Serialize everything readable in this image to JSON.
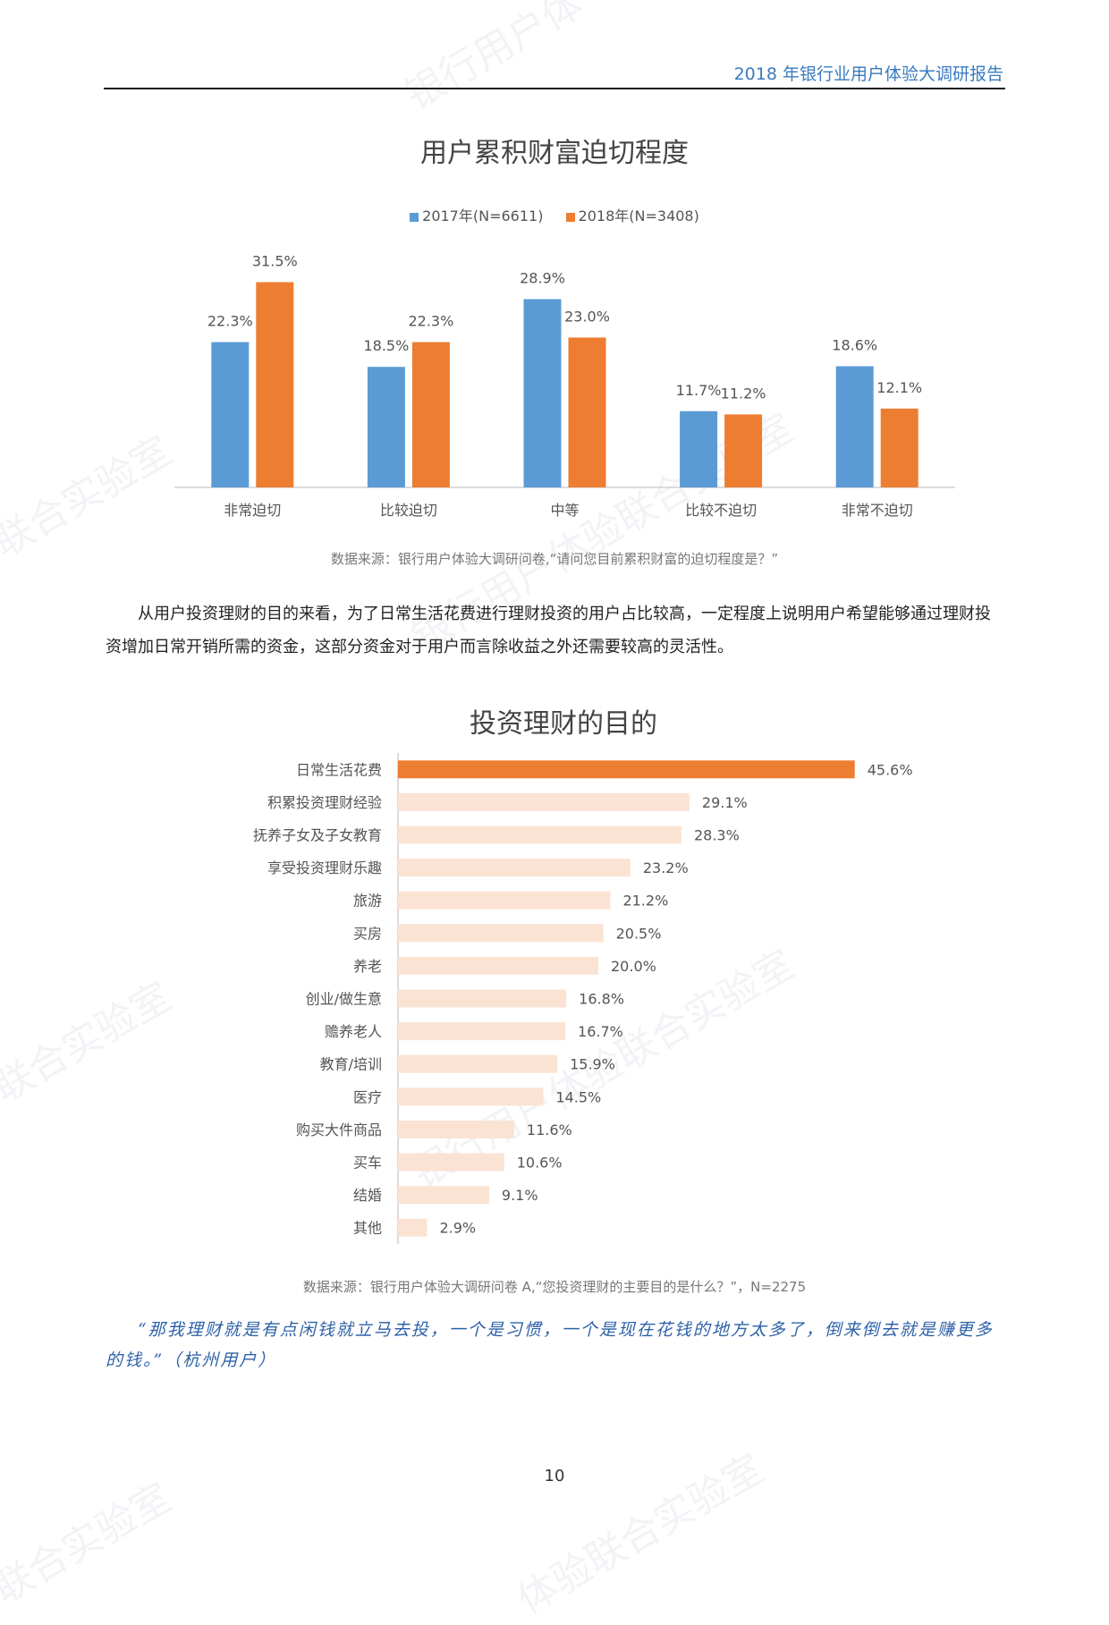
{
  "header": {
    "title": "2018 年银行业用户体验大调研报告"
  },
  "chart1": {
    "title": "用户累积财富迫切程度",
    "source": "数据来源：银行用户体验大调研问卷,“请问您目前累积财富的迫切程度是？”"
  },
  "chart2": {
    "title": "投资理财的目的",
    "source": "数据来源：银行用户体验大调研问卷 A,“您投资理财的主要目的是什么？”，N=2275"
  },
  "paragraph": "从用户投资理财的目的来看，为了日常生活花费进行理财投资的用户占比较高，一定程度上说明用户希望能够通过理财投资增加日常开销所需的资金，这部分资金对于用户而言除收益之外还需要较高的灵活性。",
  "quote": "“那我理财就是有点闲钱就立马去投，一个是习惯，一个是现在花钱的地方太多了，倒来倒去就是赚更多的钱。”（杭州用户）",
  "page_number": "10",
  "watermarks": [
    "银行用户体",
    "联合实验室",
    "银行用户体验联合实验室",
    "联合实验室",
    "银行用户体验联合实验室",
    "联合实验室",
    "体验联合实验室"
  ],
  "chart_data": [
    {
      "type": "bar",
      "title": "用户累积财富迫切程度",
      "categories": [
        "非常迫切",
        "比较迫切",
        "中等",
        "比较不迫切",
        "非常不迫切"
      ],
      "series": [
        {
          "name": "2017年(N=6611)",
          "color": "#5b9bd5",
          "values": [
            22.3,
            18.5,
            28.9,
            11.7,
            18.6
          ]
        },
        {
          "name": "2018年(N=3408)",
          "color": "#ed7d31",
          "values": [
            31.5,
            22.3,
            23.0,
            11.2,
            12.1
          ]
        }
      ],
      "ylim": [
        0,
        35
      ],
      "value_suffix": "%",
      "legend": "top-center",
      "grid": false
    },
    {
      "type": "bar",
      "orientation": "horizontal",
      "title": "投资理财的目的",
      "categories": [
        "日常生活花费",
        "积累投资理财经验",
        "抚养子女及子女教育",
        "享受投资理财乐趣",
        "旅游",
        "买房",
        "养老",
        "创业/做生意",
        "赡养老人",
        "教育/培训",
        "医疗",
        "购买大件商品",
        "买车",
        "结婚",
        "其他"
      ],
      "values": [
        45.6,
        29.1,
        28.3,
        23.2,
        21.2,
        20.5,
        20.0,
        16.8,
        16.7,
        15.9,
        14.5,
        11.6,
        10.6,
        9.1,
        2.9
      ],
      "highlight_color": "#ed7d31",
      "bar_color": "#fbe3d4",
      "xlim": [
        0,
        50
      ],
      "value_suffix": "%",
      "grid": false
    }
  ]
}
